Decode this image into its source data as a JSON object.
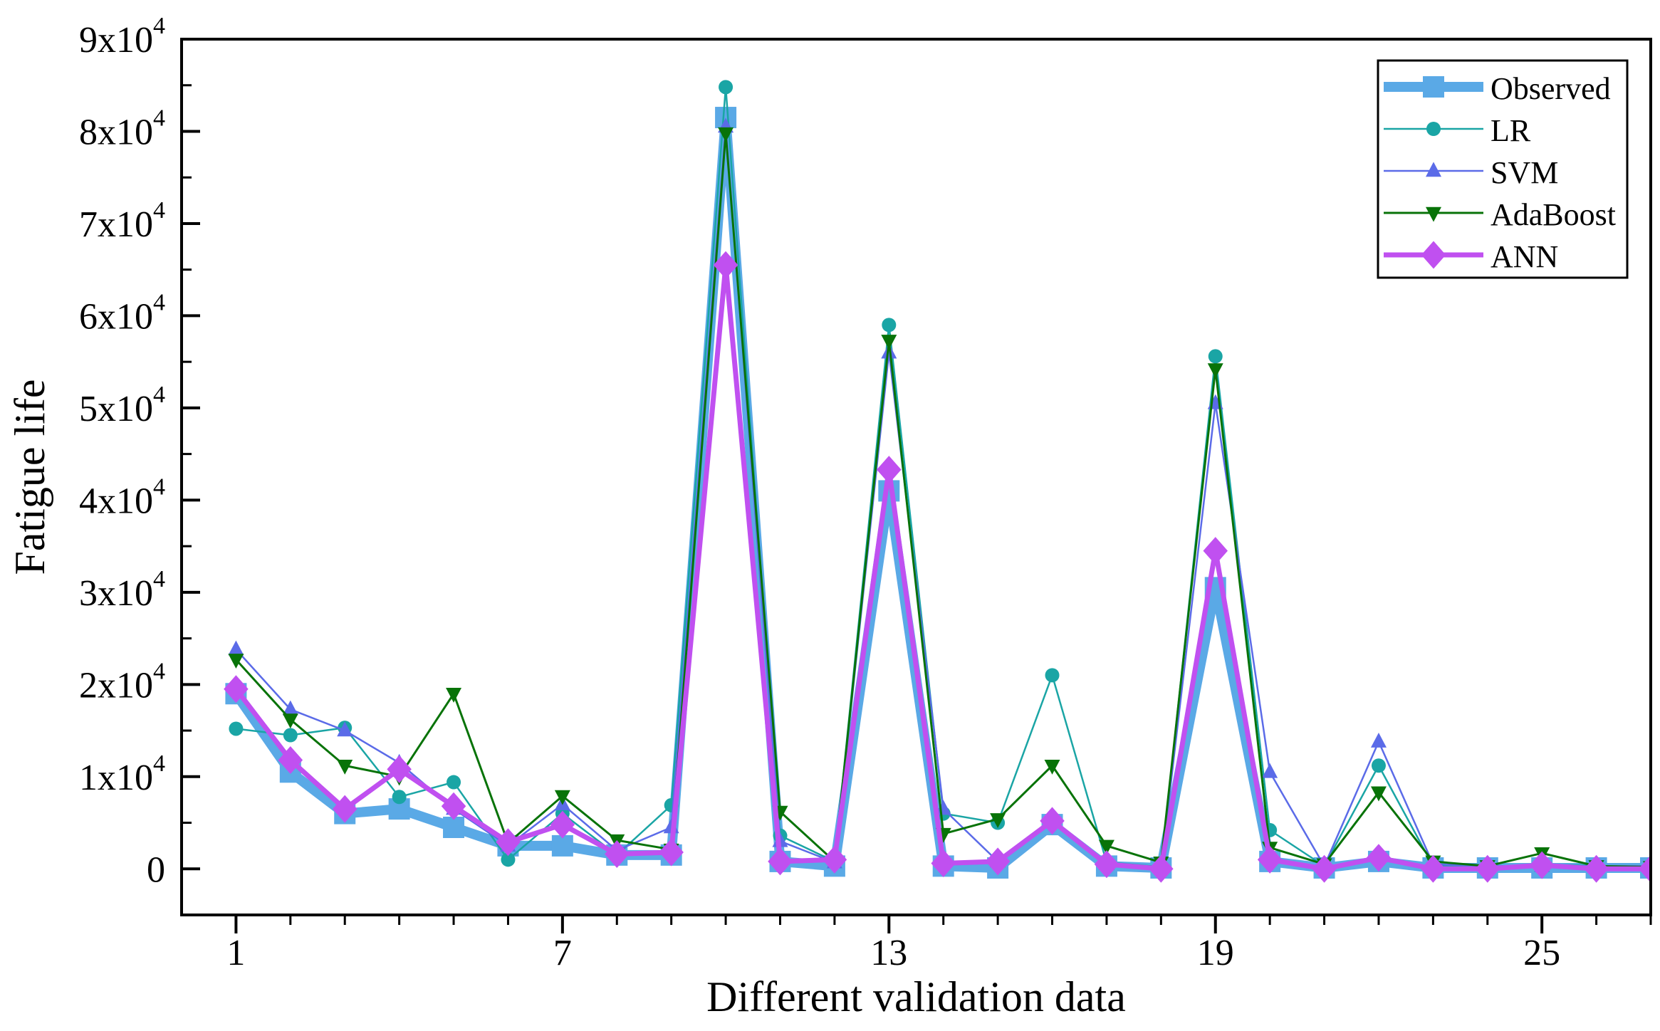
{
  "chart_data": {
    "type": "line",
    "title": "",
    "xlabel": "Different validation data",
    "ylabel": "Fatigue life",
    "xlim": [
      0,
      27
    ],
    "ylim": [
      -5000,
      90000
    ],
    "x_ticks": [
      "1",
      "7",
      "13",
      "19",
      "25"
    ],
    "y_ticks": [
      {
        "base": "0",
        "exp": ""
      },
      {
        "base": "1x10",
        "exp": "4"
      },
      {
        "base": "2x10",
        "exp": "4"
      },
      {
        "base": "3x10",
        "exp": "4"
      },
      {
        "base": "4x10",
        "exp": "4"
      },
      {
        "base": "5x10",
        "exp": "4"
      },
      {
        "base": "6x10",
        "exp": "4"
      },
      {
        "base": "7x10",
        "exp": "4"
      },
      {
        "base": "8x10",
        "exp": "4"
      },
      {
        "base": "9x10",
        "exp": "4"
      }
    ],
    "x": [
      1,
      2,
      3,
      4,
      5,
      6,
      7,
      8,
      9,
      10,
      11,
      12,
      13,
      14,
      15,
      16,
      17,
      18,
      19,
      20,
      21,
      22,
      23,
      24,
      25,
      26,
      27
    ],
    "series": [
      {
        "name": "Observed",
        "color": "#5aa9e6",
        "marker": "square",
        "values": [
          19000,
          10500,
          6000,
          6500,
          4500,
          2500,
          2500,
          1500,
          1500,
          81500,
          800,
          300,
          41000,
          300,
          100,
          4800,
          300,
          100,
          30500,
          800,
          100,
          800,
          100,
          100,
          100,
          100,
          100
        ]
      },
      {
        "name": "LR",
        "color": "#1aa5a5",
        "marker": "circle",
        "values": [
          15200,
          14500,
          15300,
          7800,
          9400,
          1000,
          6000,
          1500,
          6900,
          84800,
          3600,
          800,
          59000,
          6000,
          5000,
          21000,
          700,
          200,
          55600,
          4200,
          300,
          11200,
          300,
          200,
          500,
          300,
          200
        ]
      },
      {
        "name": "SVM",
        "color": "#5b6be8",
        "marker": "triangle-up",
        "values": [
          23800,
          17300,
          15000,
          11500,
          6500,
          2500,
          7000,
          2000,
          4500,
          80500,
          3000,
          700,
          56000,
          6500,
          800,
          5300,
          500,
          200,
          50500,
          10500,
          300,
          13800,
          500,
          300,
          300,
          300,
          300
        ]
      },
      {
        "name": "AdaBoost",
        "color": "#087308",
        "marker": "triangle-down",
        "values": [
          22700,
          16200,
          11200,
          10000,
          19000,
          2800,
          7900,
          3100,
          2100,
          79800,
          6200,
          800,
          57300,
          3800,
          5400,
          11200,
          2500,
          700,
          54200,
          2300,
          500,
          8300,
          800,
          300,
          1700,
          300,
          200
        ]
      },
      {
        "name": "ANN",
        "color": "#c050f0",
        "marker": "diamond",
        "values": [
          19500,
          11800,
          6500,
          10800,
          6800,
          2900,
          4800,
          1600,
          1800,
          65500,
          800,
          1000,
          43300,
          600,
          800,
          5200,
          500,
          0,
          34500,
          1000,
          0,
          1200,
          0,
          0,
          400,
          0,
          0
        ]
      }
    ]
  }
}
